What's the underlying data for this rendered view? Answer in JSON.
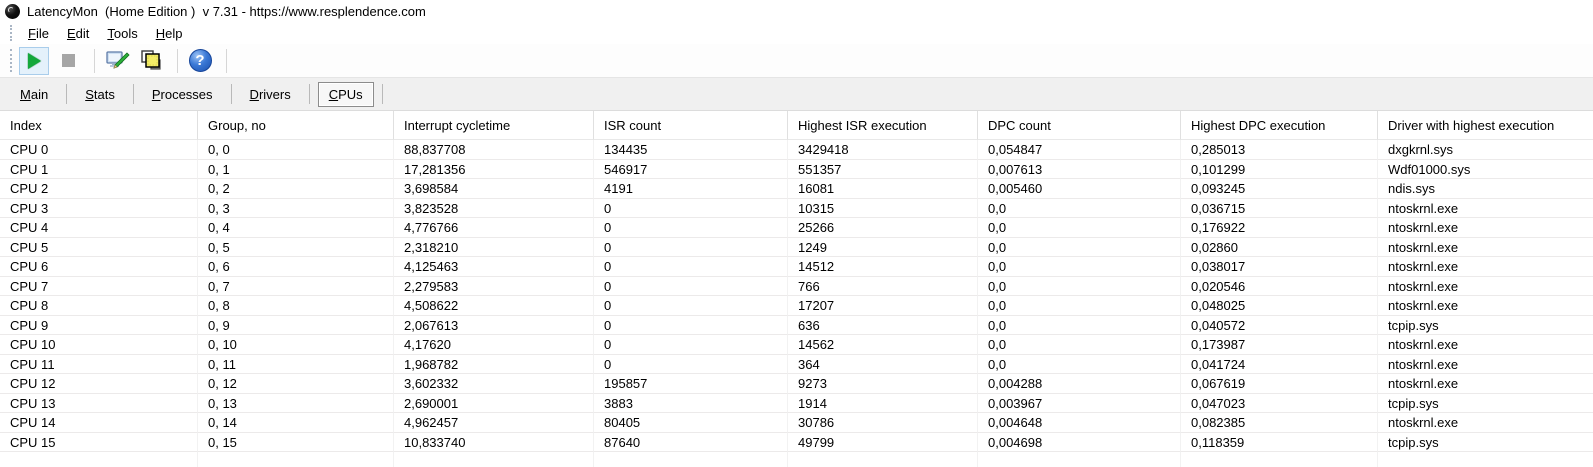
{
  "window": {
    "title": "LatencyMon  (Home Edition )  v 7.31 - https://www.resplendence.com"
  },
  "menu": {
    "items": [
      {
        "accel": "F",
        "rest": "ile"
      },
      {
        "accel": "E",
        "rest": "dit"
      },
      {
        "accel": "T",
        "rest": "ools"
      },
      {
        "accel": "H",
        "rest": "elp"
      }
    ]
  },
  "toolbar": {
    "icons": [
      "play-icon",
      "stop-icon",
      "options-icon",
      "processes-window-icon",
      "help-icon"
    ],
    "play_color": "#14a83b",
    "active_button_bg": "#e4f1fb"
  },
  "tabs": {
    "items": [
      {
        "accel": "M",
        "rest": "ain",
        "selected": false
      },
      {
        "accel": "S",
        "rest": "tats",
        "selected": false
      },
      {
        "accel": "P",
        "rest": "rocesses",
        "selected": false
      },
      {
        "accel": "D",
        "rest": "rivers",
        "selected": false
      },
      {
        "accel": "C",
        "rest": "PUs",
        "selected": true
      }
    ]
  },
  "table": {
    "columns": [
      "Index",
      "Group, no",
      "Interrupt cycletime",
      "ISR count",
      "Highest ISR execution",
      "DPC count",
      "Highest DPC execution",
      "Driver with highest execution"
    ],
    "rows": [
      [
        "CPU 0",
        "0, 0",
        "88,837708",
        "134435",
        "3429418",
        "0,054847",
        "0,285013",
        "dxgkrnl.sys"
      ],
      [
        "CPU 1",
        "0, 1",
        "17,281356",
        "546917",
        "551357",
        "0,007613",
        "0,101299",
        "Wdf01000.sys"
      ],
      [
        "CPU 2",
        "0, 2",
        "3,698584",
        "4191",
        "16081",
        "0,005460",
        "0,093245",
        "ndis.sys"
      ],
      [
        "CPU 3",
        "0, 3",
        "3,823528",
        "0",
        "10315",
        "0,0",
        "0,036715",
        "ntoskrnl.exe"
      ],
      [
        "CPU 4",
        "0, 4",
        "4,776766",
        "0",
        "25266",
        "0,0",
        "0,176922",
        "ntoskrnl.exe"
      ],
      [
        "CPU 5",
        "0, 5",
        "2,318210",
        "0",
        "1249",
        "0,0",
        "0,02860",
        "ntoskrnl.exe"
      ],
      [
        "CPU 6",
        "0, 6",
        "4,125463",
        "0",
        "14512",
        "0,0",
        "0,038017",
        "ntoskrnl.exe"
      ],
      [
        "CPU 7",
        "0, 7",
        "2,279583",
        "0",
        "766",
        "0,0",
        "0,020546",
        "ntoskrnl.exe"
      ],
      [
        "CPU 8",
        "0, 8",
        "4,508622",
        "0",
        "17207",
        "0,0",
        "0,048025",
        "ntoskrnl.exe"
      ],
      [
        "CPU 9",
        "0, 9",
        "2,067613",
        "0",
        "636",
        "0,0",
        "0,040572",
        "tcpip.sys"
      ],
      [
        "CPU 10",
        "0, 10",
        "4,17620",
        "0",
        "14562",
        "0,0",
        "0,173987",
        "ntoskrnl.exe"
      ],
      [
        "CPU 11",
        "0, 11",
        "1,968782",
        "0",
        "364",
        "0,0",
        "0,041724",
        "ntoskrnl.exe"
      ],
      [
        "CPU 12",
        "0, 12",
        "3,602332",
        "195857",
        "9273",
        "0,004288",
        "0,067619",
        "ntoskrnl.exe"
      ],
      [
        "CPU 13",
        "0, 13",
        "2,690001",
        "3883",
        "1914",
        "0,003967",
        "0,047023",
        "tcpip.sys"
      ],
      [
        "CPU 14",
        "0, 14",
        "4,962457",
        "80405",
        "30786",
        "0,004648",
        "0,082385",
        "ntoskrnl.exe"
      ],
      [
        "CPU 15",
        "0, 15",
        "10,833740",
        "87640",
        "49799",
        "0,004698",
        "0,118359",
        "tcpip.sys"
      ]
    ]
  }
}
